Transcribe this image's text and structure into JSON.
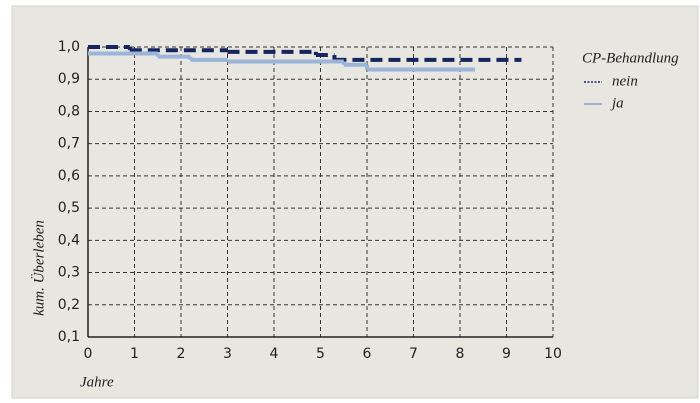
{
  "chart_data": {
    "type": "step",
    "y_label": "kum. Überleben",
    "x_label": "Jahre",
    "legend_title": "CP-Behandlung",
    "legend_position": "right",
    "xlim": [
      0,
      10
    ],
    "xticks": [
      0,
      1,
      2,
      3,
      4,
      5,
      6,
      7,
      8,
      9,
      10
    ],
    "ylim": [
      0.1,
      1.0
    ],
    "yticks": [
      {
        "value": 0.1,
        "label": "0,1"
      },
      {
        "value": 0.2,
        "label": "0,2"
      },
      {
        "value": 0.3,
        "label": "0,3"
      },
      {
        "value": 0.4,
        "label": "0,4"
      },
      {
        "value": 0.5,
        "label": "0,5"
      },
      {
        "value": 0.6,
        "label": "0,6"
      },
      {
        "value": 0.7,
        "label": "0,7"
      },
      {
        "value": 0.8,
        "label": "0,8"
      },
      {
        "value": 0.9,
        "label": "0,9"
      },
      {
        "value": 1.0,
        "label": "1,0"
      }
    ],
    "grid": true,
    "series": [
      {
        "name": "nein",
        "color": "#16255e",
        "dashed": true,
        "x": [
          0,
          0.9,
          3.0,
          4.9,
          5.3,
          9.3
        ],
        "values": [
          1.0,
          0.99,
          0.985,
          0.975,
          0.96,
          0.96
        ]
      },
      {
        "name": "ja",
        "color": "#9bb5da",
        "dashed": false,
        "x": [
          0,
          1.5,
          2.2,
          3.0,
          5.5,
          6.0,
          8.3
        ],
        "values": [
          0.98,
          0.97,
          0.96,
          0.955,
          0.945,
          0.93,
          0.93
        ]
      }
    ]
  }
}
